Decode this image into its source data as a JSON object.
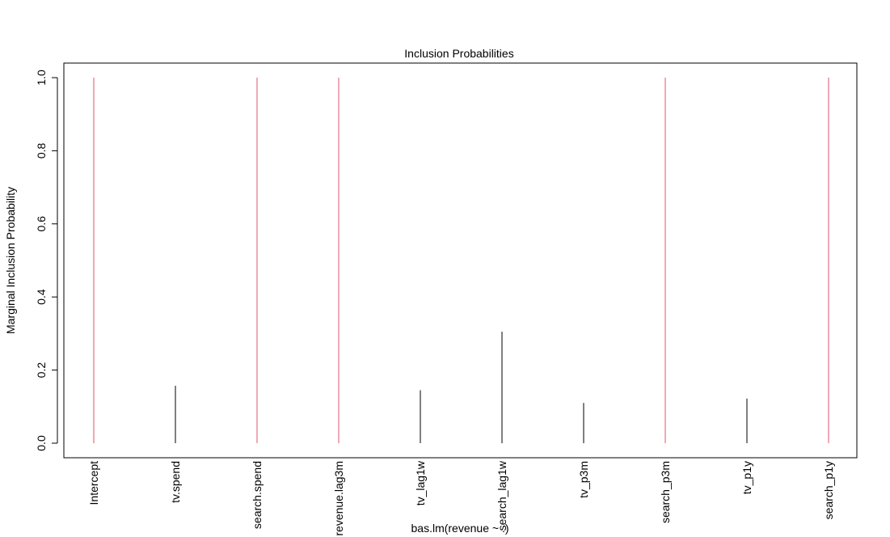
{
  "chart_data": {
    "type": "bar",
    "title": "Inclusion Probabilities",
    "xlabel": "bas.lm(revenue ~ .)",
    "ylabel": "Marginal Inclusion Probability",
    "categories": [
      "Intercept",
      "tv.spend",
      "search.spend",
      "revenue.lag3m",
      "tv_lag1w",
      "search_lag1w",
      "tv_p3m",
      "search_p3m",
      "tv_p1y",
      "search_p1y"
    ],
    "values": [
      1.0,
      0.157,
      1.0,
      1.0,
      0.145,
      0.305,
      0.11,
      1.0,
      0.122,
      1.0
    ],
    "ylim": [
      0,
      1
    ],
    "yticks": [
      "0.0",
      "0.2",
      "0.4",
      "0.6",
      "0.8",
      "1.0"
    ],
    "yticks_values": [
      0,
      0.2,
      0.4,
      0.6,
      0.8,
      1.0
    ],
    "grid": false,
    "colors": {
      "included": "#DF536B",
      "other": "#000000",
      "axis": "#000000"
    }
  }
}
